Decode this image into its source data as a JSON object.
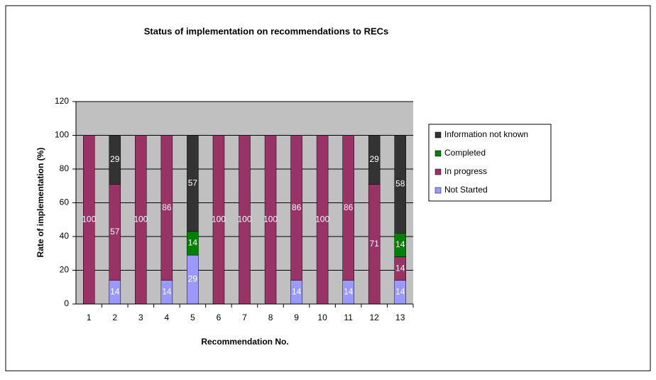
{
  "chart_data": {
    "type": "stacked_bar",
    "title": "Status of implementation on recommendations to RECs",
    "x_label": "Recommendation No.",
    "y_label": "Rate of implementation (%)",
    "categories": [
      "1",
      "2",
      "3",
      "4",
      "5",
      "6",
      "7",
      "8",
      "9",
      "10",
      "11",
      "12",
      "13"
    ],
    "series": [
      {
        "name": "Not Started",
        "color": "#9999ff",
        "values": [
          0,
          14,
          0,
          14,
          29,
          0,
          0,
          0,
          14,
          0,
          14,
          0,
          14
        ]
      },
      {
        "name": "In progress",
        "color": "#993366",
        "values": [
          100,
          57,
          100,
          86,
          0,
          100,
          100,
          100,
          86,
          100,
          86,
          71,
          14
        ]
      },
      {
        "name": "Completed",
        "color": "#008000",
        "values": [
          0,
          0,
          0,
          0,
          14,
          0,
          0,
          0,
          0,
          0,
          0,
          0,
          14
        ]
      },
      {
        "name": "Information not known",
        "color": "#333333",
        "values": [
          0,
          29,
          0,
          0,
          57,
          0,
          0,
          0,
          0,
          0,
          0,
          29,
          58
        ]
      }
    ],
    "ylim": [
      0,
      120
    ],
    "yticks": [
      0,
      20,
      40,
      60,
      80,
      100,
      120
    ],
    "grid": true
  }
}
